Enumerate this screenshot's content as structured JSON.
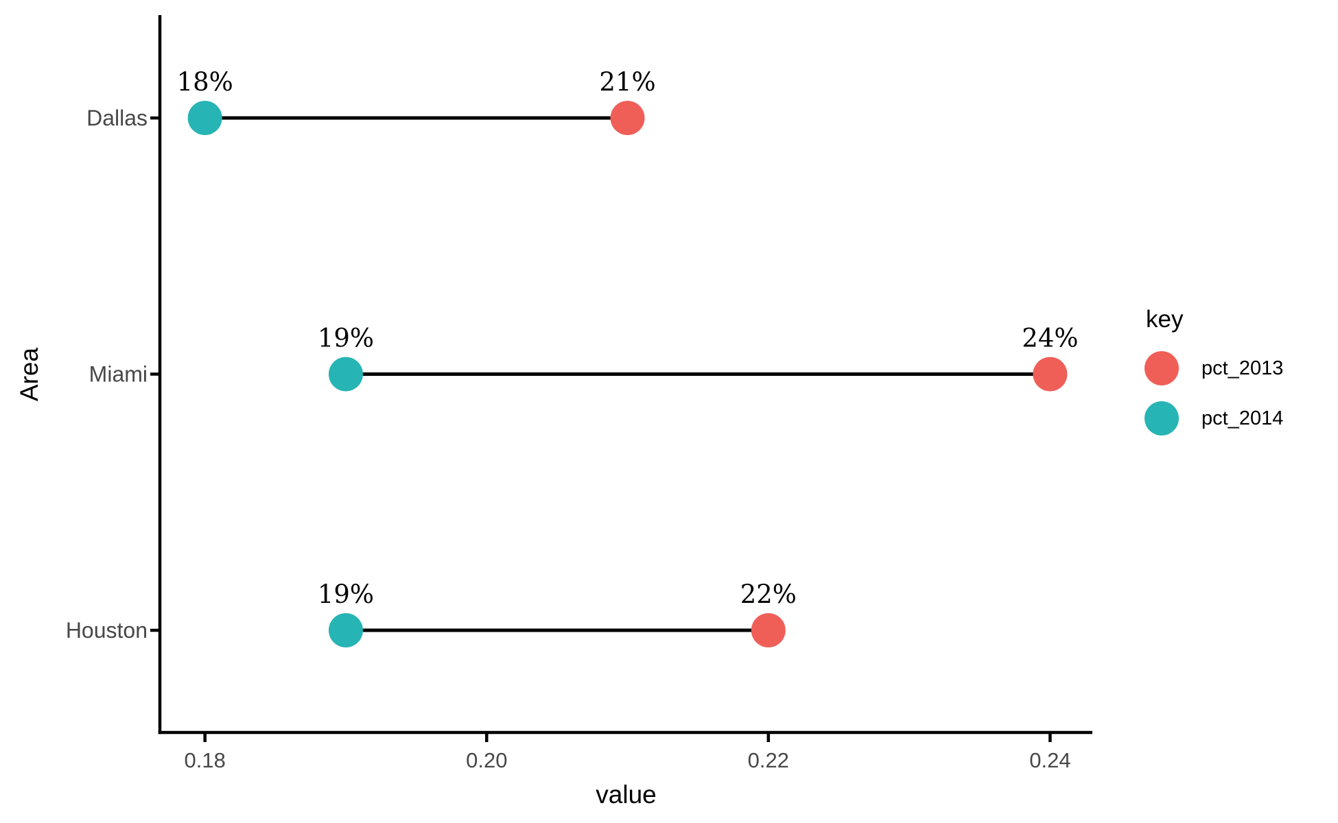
{
  "chart_data": {
    "type": "scatter",
    "subtype": "dumbbell",
    "title": "",
    "xlabel": "value",
    "ylabel": "Area",
    "categories": [
      "Dallas",
      "Miami",
      "Houston"
    ],
    "series": [
      {
        "name": "pct_2013",
        "color": "#ef5f58",
        "values": [
          0.21,
          0.24,
          0.22
        ],
        "point_labels": [
          "21%",
          "24%",
          "22%"
        ]
      },
      {
        "name": "pct_2014",
        "color": "#27b4b4",
        "values": [
          0.18,
          0.19,
          0.19
        ],
        "point_labels": [
          "18%",
          "19%",
          "19%"
        ]
      }
    ],
    "x_ticks": {
      "values": [
        0.18,
        0.2,
        0.22,
        0.24
      ],
      "labels": [
        "0.18",
        "0.20",
        "0.22",
        "0.24"
      ]
    },
    "xlim": [
      0.1768,
      0.243
    ],
    "grid": false,
    "legend": {
      "title": "key",
      "position": "right"
    },
    "connector_color": "#000000",
    "axis_line_color": "#000000",
    "axis_text_color": "#474747",
    "point_label_color": "#000000",
    "background": "#ffffff"
  }
}
